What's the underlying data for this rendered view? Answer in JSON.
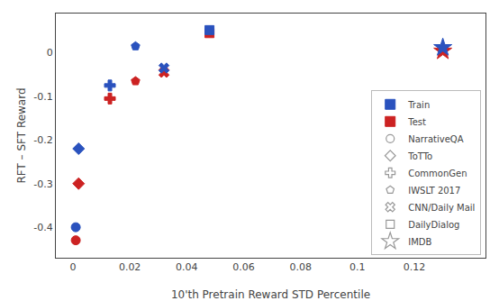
{
  "chart_data": {
    "type": "scatter",
    "xlabel": "10'th Pretrain Reward STD Percentile",
    "ylabel": "RFT – SFT Reward",
    "xlim": [
      -0.006,
      0.145
    ],
    "ylim": [
      -0.47,
      0.09
    ],
    "xticks": [
      0,
      0.02,
      0.04,
      0.06,
      0.08,
      0.1,
      0.12
    ],
    "yticks": [
      -0.4,
      -0.3,
      -0.2,
      -0.1,
      0
    ],
    "grid": false,
    "legend": "lower right",
    "groups": [
      {
        "name": "Train",
        "color": "#2a52be"
      },
      {
        "name": "Test",
        "color": "#cc2222"
      }
    ],
    "series": [
      {
        "name": "NarrativeQA",
        "marker": "circle",
        "color": "#999999",
        "x": [
          0.001,
          0.001
        ],
        "values": [
          -0.4,
          -0.43
        ]
      },
      {
        "name": "ToTTo",
        "marker": "diamond",
        "color": "#999999",
        "x": [
          0.002,
          0.002
        ],
        "values": [
          -0.22,
          -0.3
        ]
      },
      {
        "name": "CommonGen",
        "marker": "cross",
        "color": "#999999",
        "x": [
          0.013,
          0.013
        ],
        "values": [
          -0.075,
          -0.105
        ]
      },
      {
        "name": "IWSLT 2017",
        "marker": "pentagon",
        "color": "#999999",
        "x": [
          0.022,
          0.022
        ],
        "values": [
          0.015,
          -0.065
        ]
      },
      {
        "name": "CNN/Daily Mail",
        "marker": "x",
        "color": "#999999",
        "x": [
          0.032,
          0.032
        ],
        "values": [
          -0.035,
          -0.045
        ]
      },
      {
        "name": "DailyDialog",
        "marker": "square",
        "color": "#999999",
        "x": [
          0.048,
          0.048
        ],
        "values": [
          0.052,
          0.045
        ]
      },
      {
        "name": "IMDB",
        "marker": "star",
        "color": "#999999",
        "x": [
          0.13,
          0.13
        ],
        "values": [
          0.012,
          0.004
        ]
      }
    ]
  }
}
